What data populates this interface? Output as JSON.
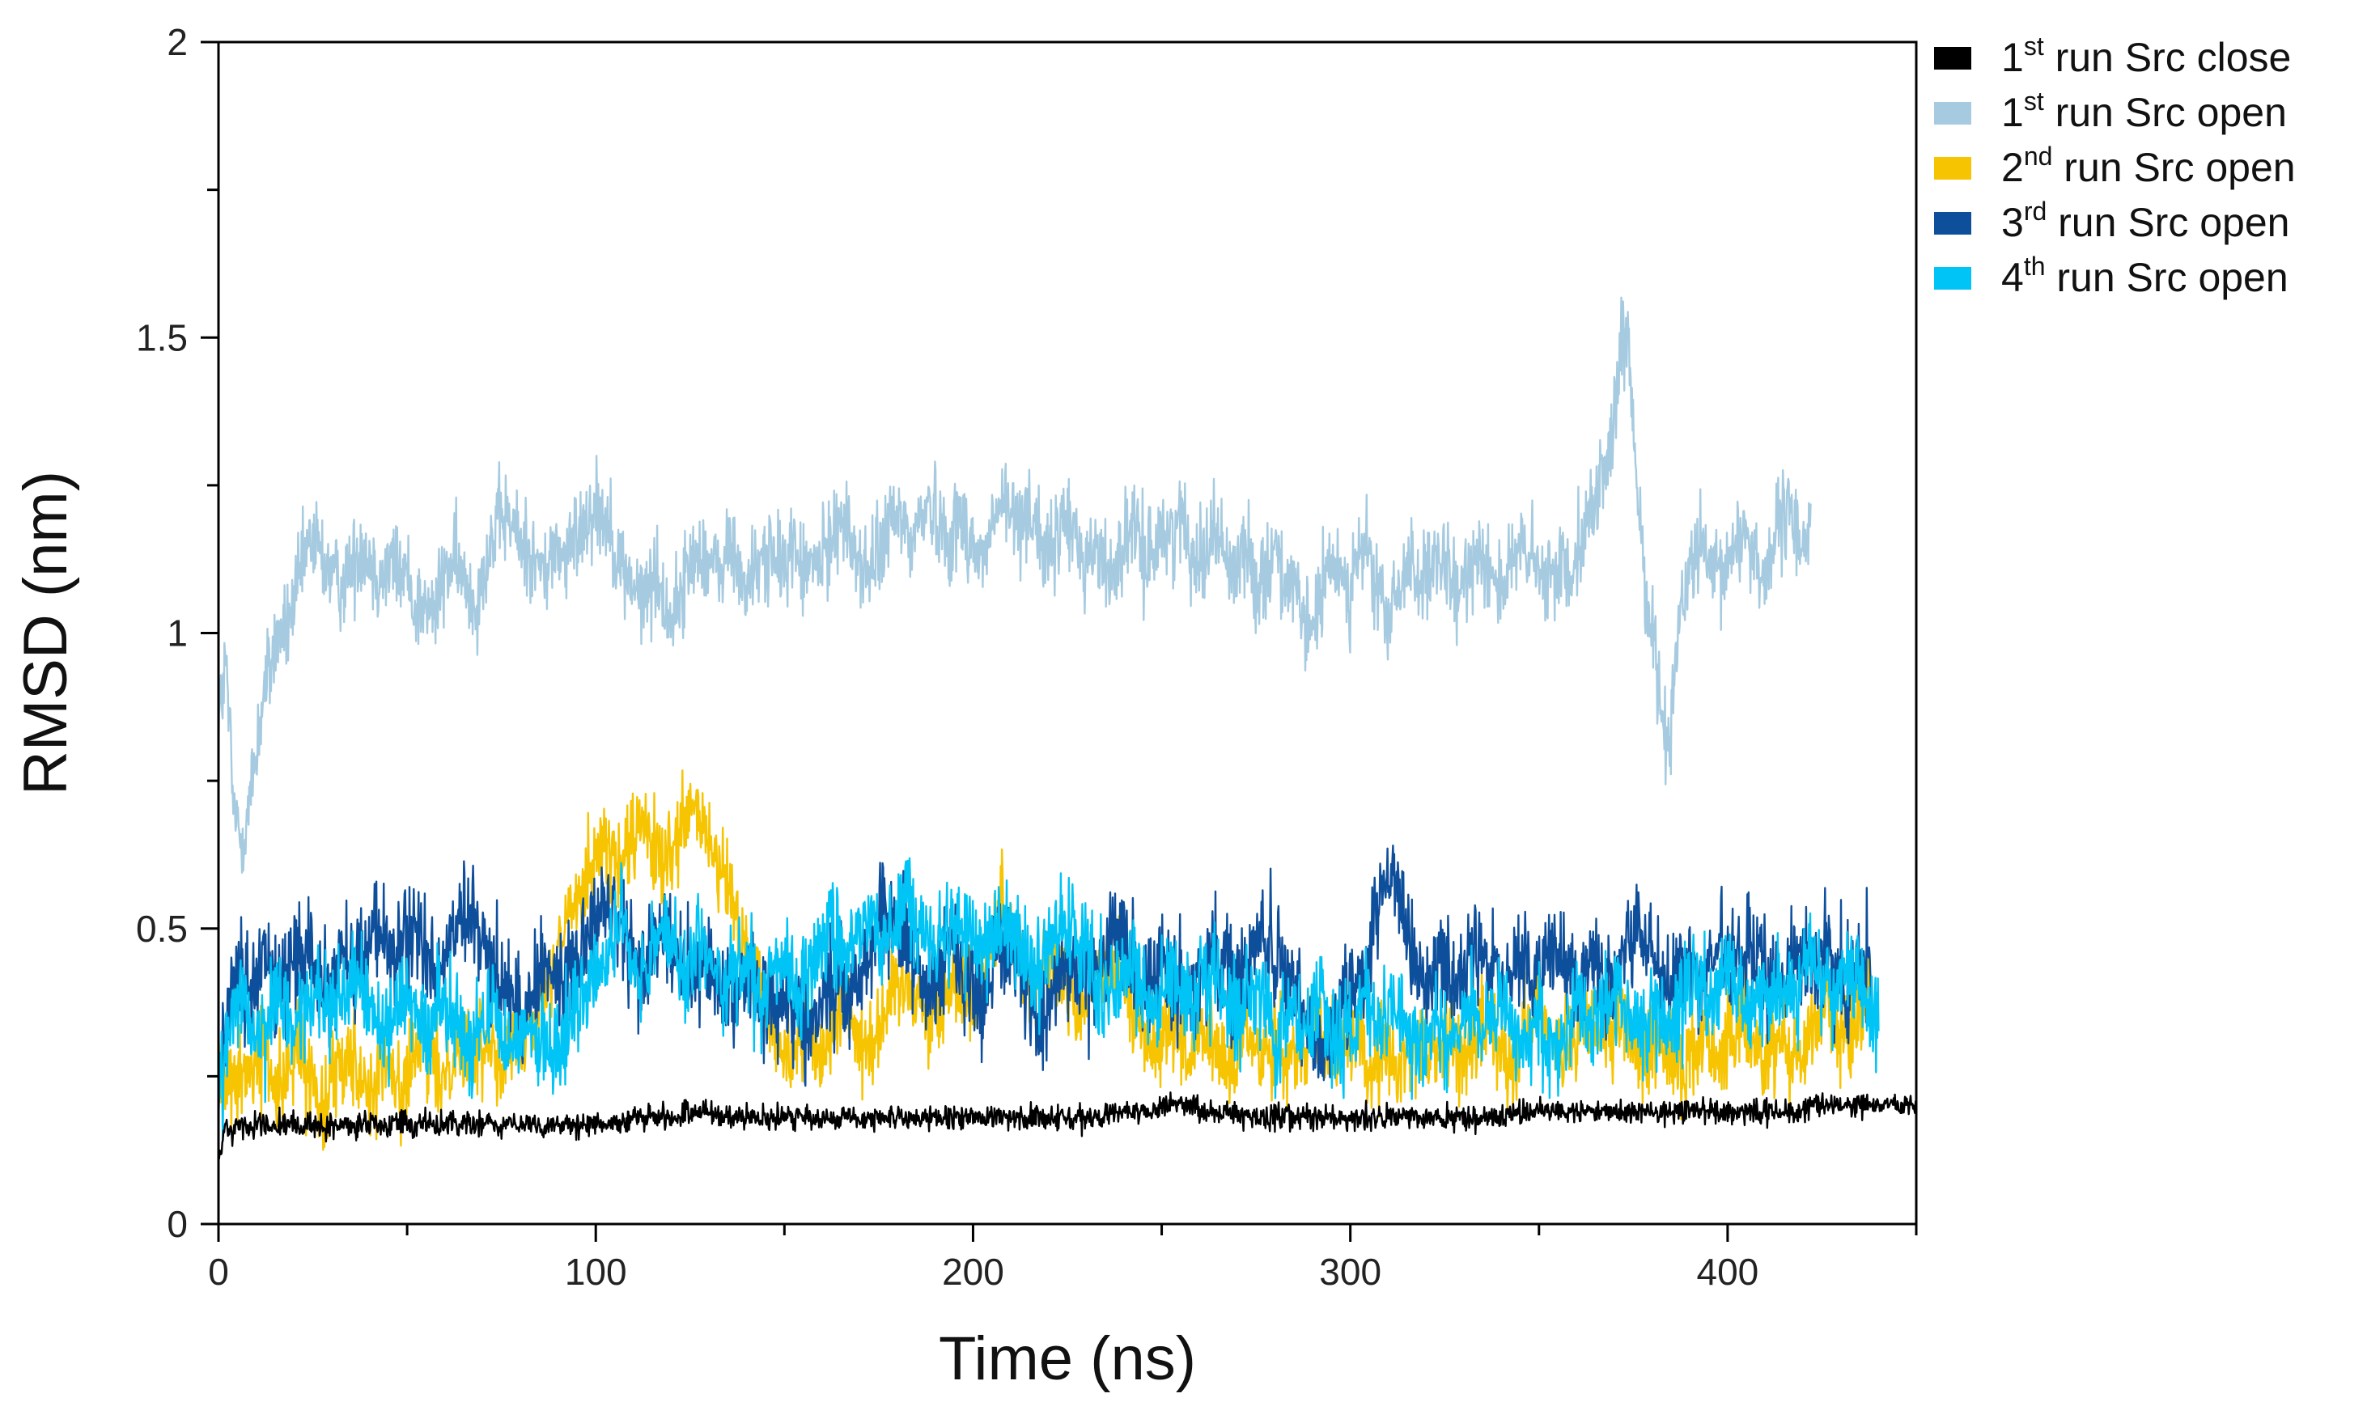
{
  "chart_data": {
    "type": "line",
    "xlabel": "Time (ns)",
    "ylabel": "RMSD (nm)",
    "xlim": [
      0,
      450
    ],
    "ylim": [
      0,
      2
    ],
    "xticks": [
      "0",
      "100",
      "200",
      "300",
      "400"
    ],
    "xtick_values": [
      0,
      100,
      200,
      300,
      400
    ],
    "xminor_step": 50,
    "yticks": [
      "0",
      "0.5",
      "1",
      "1.5",
      "2"
    ],
    "ytick_values": [
      0,
      0.5,
      1,
      1.5,
      2
    ],
    "yminor_step": 0.25,
    "grid": false,
    "legend_position": "top-right outside",
    "x_step": 2,
    "series": [
      {
        "name": "1st run Src close",
        "legend": {
          "num": "1",
          "sup": "st",
          "text": "run Src close"
        },
        "color": "#000000",
        "noise": 0.018,
        "values": [
          0.12,
          0.16,
          0.16,
          0.17,
          0.16,
          0.17,
          0.17,
          0.16,
          0.17,
          0.17,
          0.17,
          0.16,
          0.17,
          0.17,
          0.16,
          0.17,
          0.17,
          0.17,
          0.16,
          0.17,
          0.17,
          0.17,
          0.16,
          0.17,
          0.17,
          0.17,
          0.16,
          0.17,
          0.17,
          0.17,
          0.17,
          0.17,
          0.17,
          0.17,
          0.16,
          0.17,
          0.17,
          0.16,
          0.17,
          0.17,
          0.16,
          0.17,
          0.17,
          0.16,
          0.17,
          0.17,
          0.17,
          0.17,
          0.17,
          0.17,
          0.17,
          0.17,
          0.17,
          0.17,
          0.17,
          0.18,
          0.18,
          0.18,
          0.18,
          0.18,
          0.18,
          0.18,
          0.19,
          0.19,
          0.19,
          0.19,
          0.19,
          0.18,
          0.18,
          0.18,
          0.18,
          0.18,
          0.18,
          0.18,
          0.18,
          0.18,
          0.18,
          0.18,
          0.18,
          0.18,
          0.18,
          0.18,
          0.18,
          0.18,
          0.18,
          0.18,
          0.18,
          0.18,
          0.18,
          0.18,
          0.18,
          0.18,
          0.18,
          0.18,
          0.18,
          0.18,
          0.18,
          0.18,
          0.18,
          0.18,
          0.18,
          0.18,
          0.18,
          0.18,
          0.18,
          0.18,
          0.18,
          0.18,
          0.18,
          0.18,
          0.18,
          0.18,
          0.18,
          0.18,
          0.18,
          0.18,
          0.18,
          0.18,
          0.19,
          0.19,
          0.19,
          0.19,
          0.19,
          0.19,
          0.19,
          0.2,
          0.2,
          0.2,
          0.2,
          0.2,
          0.19,
          0.19,
          0.19,
          0.19,
          0.19,
          0.18,
          0.18,
          0.18,
          0.18,
          0.18,
          0.18,
          0.18,
          0.18,
          0.18,
          0.18,
          0.18,
          0.18,
          0.18,
          0.18,
          0.18,
          0.18,
          0.18,
          0.18,
          0.18,
          0.18,
          0.18,
          0.18,
          0.18,
          0.18,
          0.18,
          0.18,
          0.18,
          0.18,
          0.18,
          0.18,
          0.18,
          0.18,
          0.18,
          0.18,
          0.18,
          0.18,
          0.18,
          0.19,
          0.19,
          0.19,
          0.19,
          0.19,
          0.19,
          0.19,
          0.19,
          0.19,
          0.19,
          0.19,
          0.19,
          0.19,
          0.19,
          0.19,
          0.19,
          0.19,
          0.19,
          0.19,
          0.19,
          0.19,
          0.19,
          0.19,
          0.19,
          0.19,
          0.19,
          0.19,
          0.19,
          0.19,
          0.19,
          0.19,
          0.19,
          0.19,
          0.19,
          0.19,
          0.19,
          0.19,
          0.19,
          0.19,
          0.2,
          0.2,
          0.2,
          0.2,
          0.2,
          0.2,
          0.2,
          0.2,
          0.2,
          0.2,
          0.2,
          0.2,
          0.2,
          0.2,
          0.2,
          0.2,
          0.2,
          0.2,
          0.2,
          0.2,
          0.2,
          0.2,
          0.2,
          0.2,
          0.2,
          0.2,
          0.2
        ]
      },
      {
        "name": "1st run Src open",
        "legend": {
          "num": "1",
          "sup": "st",
          "text": "run Src open"
        },
        "color": "#a6cbe0",
        "noise": 0.07,
        "values": [
          0.85,
          0.95,
          0.7,
          0.65,
          0.7,
          0.8,
          0.9,
          0.95,
          1.0,
          1.0,
          1.05,
          1.1,
          1.15,
          1.15,
          1.12,
          1.1,
          1.08,
          1.1,
          1.12,
          1.15,
          1.13,
          1.1,
          1.1,
          1.12,
          1.1,
          1.1,
          1.05,
          1.05,
          1.03,
          1.05,
          1.1,
          1.12,
          1.1,
          1.08,
          1.05,
          1.1,
          1.15,
          1.18,
          1.2,
          1.18,
          1.15,
          1.15,
          1.12,
          1.1,
          1.12,
          1.15,
          1.12,
          1.15,
          1.18,
          1.2,
          1.22,
          1.2,
          1.18,
          1.12,
          1.1,
          1.08,
          1.05,
          1.08,
          1.1,
          1.05,
          1.03,
          1.05,
          1.1,
          1.12,
          1.15,
          1.12,
          1.1,
          1.12,
          1.15,
          1.1,
          1.08,
          1.1,
          1.12,
          1.15,
          1.1,
          1.12,
          1.15,
          1.12,
          1.1,
          1.12,
          1.12,
          1.15,
          1.2,
          1.18,
          1.15,
          1.12,
          1.1,
          1.12,
          1.15,
          1.18,
          1.2,
          1.18,
          1.15,
          1.2,
          1.22,
          1.2,
          1.18,
          1.15,
          1.2,
          1.18,
          1.15,
          1.12,
          1.15,
          1.2,
          1.22,
          1.2,
          1.18,
          1.22,
          1.2,
          1.15,
          1.12,
          1.15,
          1.2,
          1.18,
          1.15,
          1.12,
          1.15,
          1.12,
          1.1,
          1.12,
          1.15,
          1.18,
          1.15,
          1.12,
          1.15,
          1.18,
          1.15,
          1.2,
          1.18,
          1.15,
          1.12,
          1.15,
          1.18,
          1.15,
          1.1,
          1.12,
          1.15,
          1.1,
          1.08,
          1.12,
          1.15,
          1.1,
          1.08,
          1.05,
          1.0,
          1.02,
          1.05,
          1.1,
          1.12,
          1.1,
          1.08,
          1.12,
          1.15,
          1.1,
          1.05,
          1.02,
          1.05,
          1.1,
          1.12,
          1.1,
          1.08,
          1.1,
          1.12,
          1.1,
          1.05,
          1.08,
          1.12,
          1.15,
          1.12,
          1.1,
          1.08,
          1.1,
          1.12,
          1.15,
          1.12,
          1.1,
          1.08,
          1.1,
          1.12,
          1.1,
          1.15,
          1.18,
          1.2,
          1.25,
          1.3,
          1.35,
          1.5,
          1.45,
          1.25,
          1.1,
          1.0,
          0.9,
          0.8,
          0.95,
          1.05,
          1.1,
          1.15,
          1.12,
          1.1,
          1.08,
          1.12,
          1.15,
          1.18,
          1.15,
          1.12,
          1.1,
          1.15,
          1.18,
          1.2,
          1.18,
          1.15,
          1.18
        ]
      },
      {
        "name": "2nd run Src open",
        "legend": {
          "num": "2",
          "sup": "nd",
          "text": "run Src open"
        },
        "color": "#f6c400",
        "noise": 0.07,
        "values": [
          0.3,
          0.25,
          0.22,
          0.25,
          0.25,
          0.28,
          0.3,
          0.25,
          0.22,
          0.25,
          0.3,
          0.28,
          0.25,
          0.22,
          0.2,
          0.25,
          0.28,
          0.3,
          0.28,
          0.25,
          0.22,
          0.25,
          0.28,
          0.25,
          0.22,
          0.25,
          0.28,
          0.3,
          0.28,
          0.25,
          0.25,
          0.3,
          0.3,
          0.3,
          0.28,
          0.3,
          0.32,
          0.3,
          0.28,
          0.3,
          0.32,
          0.35,
          0.38,
          0.4,
          0.42,
          0.45,
          0.5,
          0.55,
          0.58,
          0.6,
          0.62,
          0.65,
          0.62,
          0.6,
          0.62,
          0.65,
          0.68,
          0.65,
          0.62,
          0.6,
          0.62,
          0.65,
          0.68,
          0.7,
          0.68,
          0.65,
          0.6,
          0.58,
          0.55,
          0.5,
          0.45,
          0.42,
          0.4,
          0.35,
          0.3,
          0.28,
          0.3,
          0.32,
          0.35,
          0.3,
          0.28,
          0.32,
          0.35,
          0.38,
          0.35,
          0.32,
          0.3,
          0.32,
          0.35,
          0.38,
          0.4,
          0.42,
          0.4,
          0.38,
          0.35,
          0.35,
          0.38,
          0.4,
          0.42,
          0.4,
          0.38,
          0.42,
          0.45,
          0.5,
          0.55,
          0.5,
          0.45,
          0.42,
          0.4,
          0.42,
          0.45,
          0.42,
          0.4,
          0.38,
          0.35,
          0.38,
          0.4,
          0.42,
          0.45,
          0.42,
          0.4,
          0.38,
          0.35,
          0.32,
          0.3,
          0.32,
          0.35,
          0.32,
          0.3,
          0.28,
          0.3,
          0.32,
          0.3,
          0.28,
          0.25,
          0.3,
          0.32,
          0.3,
          0.28,
          0.3,
          0.32,
          0.3,
          0.28,
          0.3,
          0.32,
          0.35,
          0.32,
          0.3,
          0.28,
          0.3,
          0.32,
          0.3,
          0.28,
          0.25,
          0.3,
          0.28,
          0.25,
          0.28,
          0.3,
          0.32,
          0.3,
          0.28,
          0.3,
          0.32,
          0.3,
          0.28,
          0.3,
          0.32,
          0.35,
          0.32,
          0.3,
          0.28,
          0.3,
          0.32,
          0.35,
          0.38,
          0.35,
          0.32,
          0.3,
          0.28,
          0.3,
          0.32,
          0.35,
          0.32,
          0.3,
          0.32,
          0.35,
          0.32,
          0.3,
          0.28,
          0.3,
          0.32,
          0.3,
          0.28,
          0.25,
          0.28,
          0.3,
          0.32,
          0.3,
          0.28,
          0.3,
          0.32,
          0.35,
          0.32,
          0.3,
          0.28,
          0.3,
          0.32,
          0.3,
          0.28,
          0.3,
          0.32,
          0.35,
          0.38,
          0.35,
          0.32,
          0.3,
          0.35,
          0.38,
          0.4
        ]
      },
      {
        "name": "3rd run Src open",
        "legend": {
          "num": "3",
          "sup": "rd",
          "text": "run Src open"
        },
        "color": "#0e4f9c",
        "noise": 0.08,
        "values": [
          0.25,
          0.35,
          0.4,
          0.42,
          0.4,
          0.42,
          0.45,
          0.42,
          0.4,
          0.42,
          0.45,
          0.48,
          0.45,
          0.42,
          0.4,
          0.42,
          0.45,
          0.45,
          0.42,
          0.45,
          0.48,
          0.5,
          0.48,
          0.45,
          0.45,
          0.48,
          0.5,
          0.48,
          0.45,
          0.42,
          0.45,
          0.48,
          0.5,
          0.52,
          0.5,
          0.48,
          0.45,
          0.42,
          0.4,
          0.38,
          0.35,
          0.38,
          0.4,
          0.42,
          0.45,
          0.42,
          0.4,
          0.45,
          0.48,
          0.5,
          0.52,
          0.55,
          0.52,
          0.5,
          0.48,
          0.45,
          0.42,
          0.45,
          0.48,
          0.5,
          0.48,
          0.45,
          0.42,
          0.4,
          0.42,
          0.45,
          0.42,
          0.4,
          0.38,
          0.4,
          0.42,
          0.4,
          0.38,
          0.35,
          0.38,
          0.4,
          0.38,
          0.35,
          0.32,
          0.35,
          0.38,
          0.4,
          0.42,
          0.4,
          0.38,
          0.42,
          0.45,
          0.5,
          0.55,
          0.52,
          0.5,
          0.48,
          0.45,
          0.42,
          0.4,
          0.42,
          0.45,
          0.48,
          0.45,
          0.42,
          0.4,
          0.38,
          0.42,
          0.45,
          0.48,
          0.45,
          0.42,
          0.4,
          0.38,
          0.35,
          0.38,
          0.4,
          0.42,
          0.45,
          0.42,
          0.4,
          0.42,
          0.45,
          0.48,
          0.5,
          0.48,
          0.45,
          0.42,
          0.4,
          0.42,
          0.45,
          0.42,
          0.4,
          0.38,
          0.4,
          0.42,
          0.45,
          0.48,
          0.45,
          0.42,
          0.4,
          0.42,
          0.45,
          0.5,
          0.48,
          0.45,
          0.42,
          0.4,
          0.38,
          0.35,
          0.32,
          0.3,
          0.32,
          0.35,
          0.38,
          0.4,
          0.42,
          0.45,
          0.5,
          0.55,
          0.6,
          0.55,
          0.5,
          0.45,
          0.42,
          0.4,
          0.42,
          0.45,
          0.42,
          0.4,
          0.42,
          0.45,
          0.48,
          0.45,
          0.42,
          0.4,
          0.42,
          0.45,
          0.42,
          0.4,
          0.42,
          0.45,
          0.48,
          0.45,
          0.42,
          0.4,
          0.42,
          0.45,
          0.42,
          0.4,
          0.42,
          0.45,
          0.48,
          0.5,
          0.48,
          0.45,
          0.42,
          0.4,
          0.42,
          0.45,
          0.42,
          0.4,
          0.42,
          0.45,
          0.48,
          0.45,
          0.42,
          0.45,
          0.48,
          0.45,
          0.42,
          0.4,
          0.42,
          0.45,
          0.48,
          0.45,
          0.42,
          0.45,
          0.48,
          0.45,
          0.42,
          0.4,
          0.42,
          0.45,
          0.42
        ]
      },
      {
        "name": "4th run Src open",
        "legend": {
          "num": "4",
          "sup": "th",
          "text": "run Src open"
        },
        "color": "#00c4f5",
        "noise": 0.075,
        "values": [
          0.22,
          0.3,
          0.35,
          0.38,
          0.35,
          0.3,
          0.32,
          0.35,
          0.38,
          0.35,
          0.32,
          0.35,
          0.38,
          0.4,
          0.38,
          0.35,
          0.38,
          0.4,
          0.42,
          0.4,
          0.38,
          0.35,
          0.32,
          0.35,
          0.38,
          0.4,
          0.38,
          0.35,
          0.32,
          0.35,
          0.38,
          0.35,
          0.32,
          0.3,
          0.32,
          0.35,
          0.38,
          0.35,
          0.32,
          0.3,
          0.32,
          0.35,
          0.32,
          0.3,
          0.28,
          0.3,
          0.32,
          0.35,
          0.38,
          0.4,
          0.42,
          0.45,
          0.48,
          0.5,
          0.48,
          0.45,
          0.42,
          0.45,
          0.48,
          0.5,
          0.48,
          0.45,
          0.42,
          0.45,
          0.48,
          0.45,
          0.42,
          0.4,
          0.42,
          0.45,
          0.42,
          0.4,
          0.38,
          0.4,
          0.42,
          0.45,
          0.42,
          0.4,
          0.42,
          0.45,
          0.48,
          0.5,
          0.48,
          0.45,
          0.48,
          0.5,
          0.52,
          0.5,
          0.48,
          0.5,
          0.52,
          0.55,
          0.52,
          0.5,
          0.48,
          0.45,
          0.48,
          0.5,
          0.52,
          0.5,
          0.48,
          0.45,
          0.48,
          0.5,
          0.52,
          0.5,
          0.48,
          0.45,
          0.42,
          0.45,
          0.48,
          0.5,
          0.52,
          0.5,
          0.48,
          0.45,
          0.42,
          0.4,
          0.38,
          0.4,
          0.42,
          0.45,
          0.42,
          0.4,
          0.38,
          0.4,
          0.42,
          0.4,
          0.38,
          0.35,
          0.38,
          0.4,
          0.42,
          0.4,
          0.38,
          0.35,
          0.38,
          0.4,
          0.38,
          0.35,
          0.32,
          0.35,
          0.38,
          0.35,
          0.32,
          0.35,
          0.38,
          0.35,
          0.32,
          0.3,
          0.32,
          0.35,
          0.38,
          0.35,
          0.32,
          0.35,
          0.38,
          0.35,
          0.32,
          0.3,
          0.32,
          0.35,
          0.32,
          0.3,
          0.32,
          0.35,
          0.38,
          0.35,
          0.32,
          0.35,
          0.38,
          0.35,
          0.32,
          0.3,
          0.32,
          0.35,
          0.32,
          0.3,
          0.32,
          0.35,
          0.38,
          0.35,
          0.32,
          0.35,
          0.38,
          0.4,
          0.38,
          0.35,
          0.32,
          0.35,
          0.38,
          0.35,
          0.32,
          0.35,
          0.38,
          0.4,
          0.42,
          0.4,
          0.38,
          0.4,
          0.42,
          0.4,
          0.38,
          0.35,
          0.38,
          0.4,
          0.42,
          0.4,
          0.38,
          0.4,
          0.42,
          0.45,
          0.42,
          0.4,
          0.38,
          0.4,
          0.42,
          0.4,
          0.38,
          0.35,
          0.32
        ]
      }
    ]
  }
}
